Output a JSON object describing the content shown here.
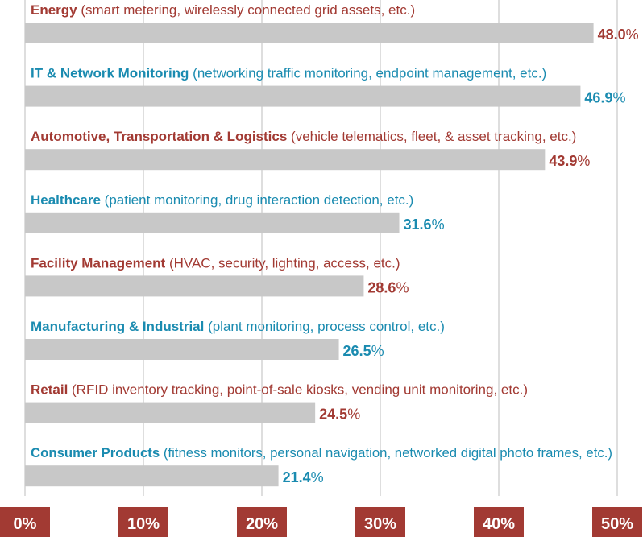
{
  "chart_data": {
    "type": "bar",
    "orientation": "horizontal",
    "categories": [
      "Energy",
      "IT & Network Monitoring",
      "Automotive, Transportation & Logistics",
      "Healthcare",
      "Facility Management",
      "Manufacturing & Industrial",
      "Retail",
      "Consumer Products"
    ],
    "descriptions": [
      "(smart metering, wirelessly connected grid assets, etc.)",
      "(networking traffic monitoring, endpoint management, etc.)",
      "(vehicle telematics, fleet, & asset tracking, etc.)",
      "(patient monitoring, drug interaction detection, etc.)",
      "(HVAC, security, lighting, access, etc.)",
      "(plant monitoring, process control, etc.)",
      "(RFID inventory tracking, point-of-sale kiosks, vending unit monitoring, etc.)",
      "(fitness monitors, personal navigation, networked digital photo frames, etc.)"
    ],
    "values": [
      48.0,
      46.9,
      43.9,
      31.6,
      28.6,
      26.5,
      24.5,
      21.4
    ],
    "value_labels": [
      "48.0",
      "46.9",
      "43.9",
      "31.6",
      "28.6",
      "26.5",
      "24.5",
      "21.4"
    ],
    "value_suffix": "%",
    "label_colors": [
      "#a23a33",
      "#1a8bb0",
      "#a23a33",
      "#1a8bb0",
      "#a23a33",
      "#1a8bb0",
      "#a23a33",
      "#1a8bb0"
    ],
    "xlim": [
      0,
      50
    ],
    "x_ticks": [
      0,
      10,
      20,
      30,
      40,
      50
    ],
    "x_tick_labels": [
      "0%",
      "10%",
      "20%",
      "30%",
      "40%",
      "50%"
    ],
    "grid": true,
    "colors": {
      "bar": "#c8c8c8",
      "grid": "#c8c8c8",
      "tick_badge": "#a23a33",
      "tick_text": "#ffffff"
    }
  }
}
